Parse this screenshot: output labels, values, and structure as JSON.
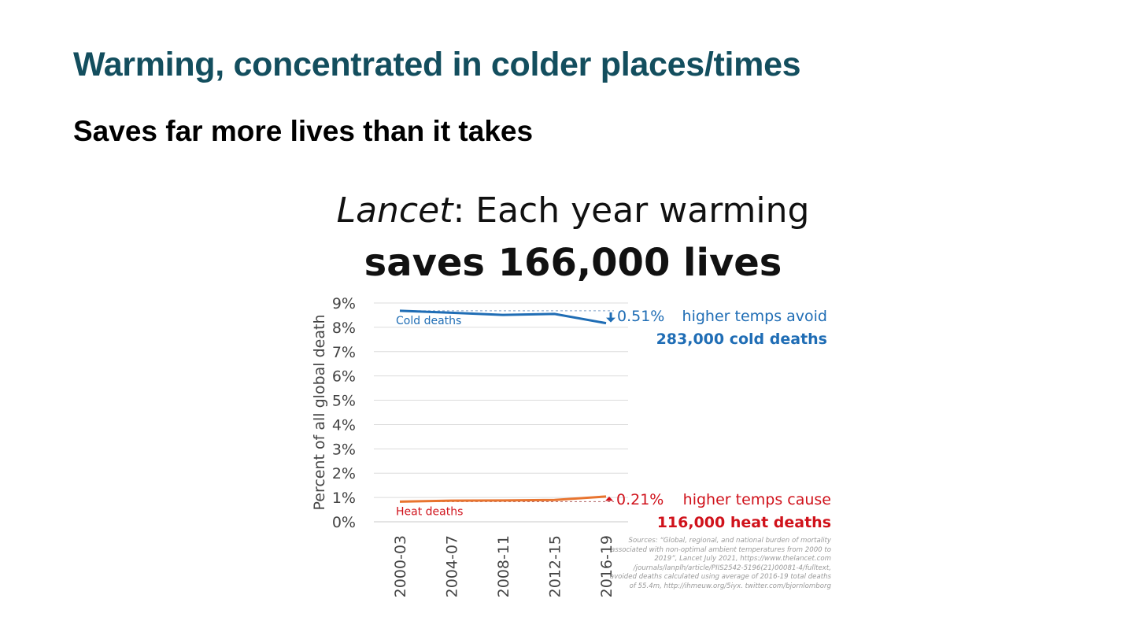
{
  "slide": {
    "title": "Warming, concentrated in colder places/times",
    "subtitle": "Saves far more lives than it takes"
  },
  "chart_title": {
    "italic": "Lancet",
    "rest": ": Each year warming",
    "line2": "saves 166,000 lives"
  },
  "colors": {
    "title": "#134e5e",
    "cold": "#1f6db5",
    "heat": "#d0121b",
    "heat_line": "#e8742f"
  },
  "chart_data": {
    "type": "line",
    "categories": [
      "2000-03",
      "2004-07",
      "2008-11",
      "2012-15",
      "2016-19"
    ],
    "ylabel": "Percent of all global death",
    "ylim": [
      0,
      9
    ],
    "yticks": [
      "0%",
      "1%",
      "2%",
      "3%",
      "4%",
      "5%",
      "6%",
      "7%",
      "8%",
      "9%"
    ],
    "grid": true,
    "series": [
      {
        "name": "Cold deaths",
        "values": [
          8.68,
          8.6,
          8.51,
          8.55,
          8.17
        ]
      },
      {
        "name": "Heat deaths",
        "values": [
          0.83,
          0.87,
          0.88,
          0.9,
          1.04
        ]
      }
    ],
    "annotations": {
      "cold": {
        "change": "0.51%",
        "text": "higher temps avoid",
        "bold": "283,000 cold deaths"
      },
      "heat": {
        "change": "0.21%",
        "text": "higher temps cause",
        "bold": "116,000 heat deaths"
      }
    }
  },
  "sources": [
    "Sources: “Global, regional, and national burden of mortality",
    "associated with non-optimal ambient temperatures from 2000 to",
    "2019”, Lancet July 2021, https://www.thelancet.com",
    "/journals/lanplh/article/PIIS2542-5196(21)00081-4/fulltext,",
    "avoided deaths calculated using average of 2016-19 total deaths",
    "of 55.4m, http://ihmeuw.org/5iyx. twitter.com/bjornlomborg"
  ]
}
